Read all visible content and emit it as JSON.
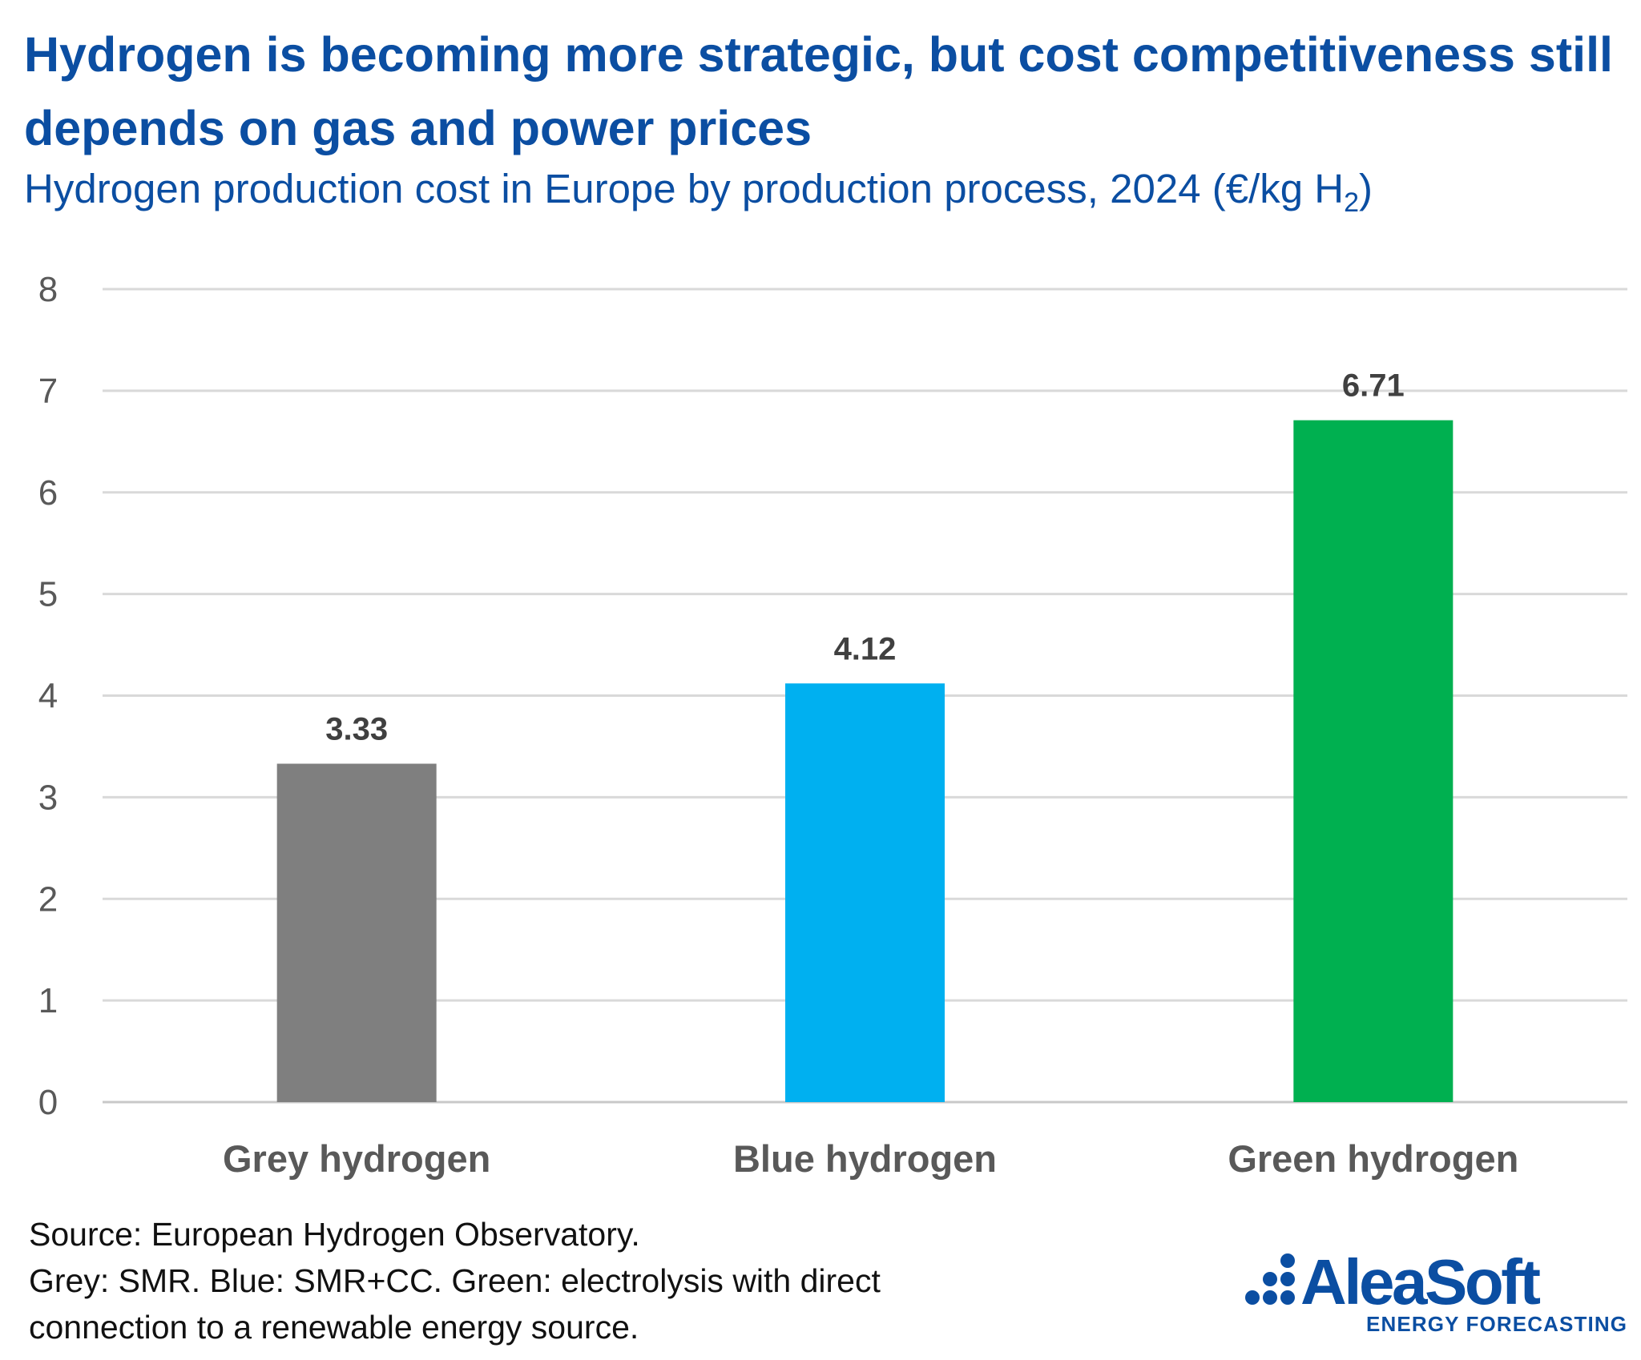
{
  "title": "Hydrogen is becoming more strategic, but cost competitiveness still depends on gas and power prices",
  "subtitle": {
    "text": "Hydrogen production cost in Europe by production process, 2024 (€/kg H",
    "sub": "2",
    "close": ")"
  },
  "chart_data": {
    "type": "bar",
    "categories": [
      "Grey hydrogen",
      "Blue hydrogen",
      "Green hydrogen"
    ],
    "values": [
      3.33,
      4.12,
      6.71
    ],
    "data_labels": [
      "3.33",
      "4.12",
      "6.71"
    ],
    "colors": [
      "#7F7F7F",
      "#00B0F0",
      "#00B050"
    ],
    "ylim": [
      0,
      8
    ],
    "yticks": [
      "0",
      "1",
      "2",
      "3",
      "4",
      "5",
      "6",
      "7",
      "8"
    ],
    "grid": true,
    "legend": "none"
  },
  "footnotes": [
    "Source: European Hydrogen Observatory.",
    "Grey: SMR. Blue: SMR+CC. Green: electrolysis with direct",
    "connection to a renewable energy source."
  ],
  "logo": {
    "name": "AleaSoft",
    "tagline": "ENERGY FORECASTING",
    "color": "#0B4EA2"
  }
}
